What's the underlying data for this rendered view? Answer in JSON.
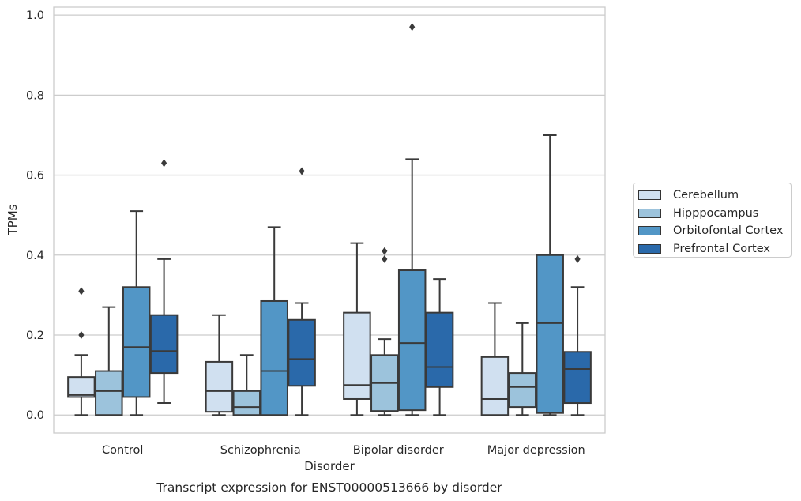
{
  "chart_data": {
    "type": "box",
    "caption": "Transcript expression for ENST00000513666 by disorder",
    "xlabel": "Disorder",
    "ylabel": "TPMs",
    "ylim": [
      -0.045,
      1.02
    ],
    "yticks": [
      "0.0",
      "0.2",
      "0.4",
      "0.6",
      "0.8",
      "1.0"
    ],
    "grid": true,
    "legend_position": "right",
    "categories": [
      "Control",
      "Schizophrenia",
      "Bipolar disorder",
      "Major depression"
    ],
    "series": [
      {
        "name": "Cerebellum",
        "color": "#d0e0f0",
        "boxes": [
          {
            "whisker_low": 0.0,
            "q1": 0.045,
            "median": 0.05,
            "q3": 0.095,
            "whisker_high": 0.15,
            "outliers": [
              0.2,
              0.31
            ]
          },
          {
            "whisker_low": 0.0,
            "q1": 0.008,
            "median": 0.06,
            "q3": 0.133,
            "whisker_high": 0.25,
            "outliers": []
          },
          {
            "whisker_low": 0.0,
            "q1": 0.04,
            "median": 0.075,
            "q3": 0.256,
            "whisker_high": 0.43,
            "outliers": []
          },
          {
            "whisker_low": 0.0,
            "q1": 0.0,
            "median": 0.04,
            "q3": 0.145,
            "whisker_high": 0.28,
            "outliers": []
          }
        ]
      },
      {
        "name": "Hipppocampus",
        "color": "#9cc3dc",
        "boxes": [
          {
            "whisker_low": 0.0,
            "q1": 0.0,
            "median": 0.06,
            "q3": 0.11,
            "whisker_high": 0.27,
            "outliers": []
          },
          {
            "whisker_low": 0.0,
            "q1": 0.0,
            "median": 0.02,
            "q3": 0.06,
            "whisker_high": 0.15,
            "outliers": []
          },
          {
            "whisker_low": 0.0,
            "q1": 0.01,
            "median": 0.08,
            "q3": 0.15,
            "whisker_high": 0.19,
            "outliers": [
              0.39,
              0.41
            ]
          },
          {
            "whisker_low": 0.0,
            "q1": 0.02,
            "median": 0.07,
            "q3": 0.105,
            "whisker_high": 0.23,
            "outliers": []
          }
        ]
      },
      {
        "name": "Orbitofontal Cortex",
        "color": "#5296c6",
        "boxes": [
          {
            "whisker_low": 0.0,
            "q1": 0.045,
            "median": 0.17,
            "q3": 0.32,
            "whisker_high": 0.51,
            "outliers": []
          },
          {
            "whisker_low": 0.0,
            "q1": 0.0,
            "median": 0.11,
            "q3": 0.285,
            "whisker_high": 0.47,
            "outliers": []
          },
          {
            "whisker_low": 0.0,
            "q1": 0.012,
            "median": 0.18,
            "q3": 0.362,
            "whisker_high": 0.64,
            "outliers": [
              0.97
            ]
          },
          {
            "whisker_low": 0.0,
            "q1": 0.005,
            "median": 0.23,
            "q3": 0.4,
            "whisker_high": 0.7,
            "outliers": []
          }
        ]
      },
      {
        "name": "Prefrontal Cortex",
        "color": "#2a69aa",
        "boxes": [
          {
            "whisker_low": 0.03,
            "q1": 0.105,
            "median": 0.16,
            "q3": 0.25,
            "whisker_high": 0.39,
            "outliers": [
              0.63
            ]
          },
          {
            "whisker_low": 0.0,
            "q1": 0.073,
            "median": 0.14,
            "q3": 0.238,
            "whisker_high": 0.28,
            "outliers": [
              0.61
            ]
          },
          {
            "whisker_low": 0.0,
            "q1": 0.07,
            "median": 0.12,
            "q3": 0.256,
            "whisker_high": 0.34,
            "outliers": []
          },
          {
            "whisker_low": 0.0,
            "q1": 0.03,
            "median": 0.115,
            "q3": 0.158,
            "whisker_high": 0.32,
            "outliers": [
              0.39
            ]
          }
        ]
      }
    ]
  }
}
